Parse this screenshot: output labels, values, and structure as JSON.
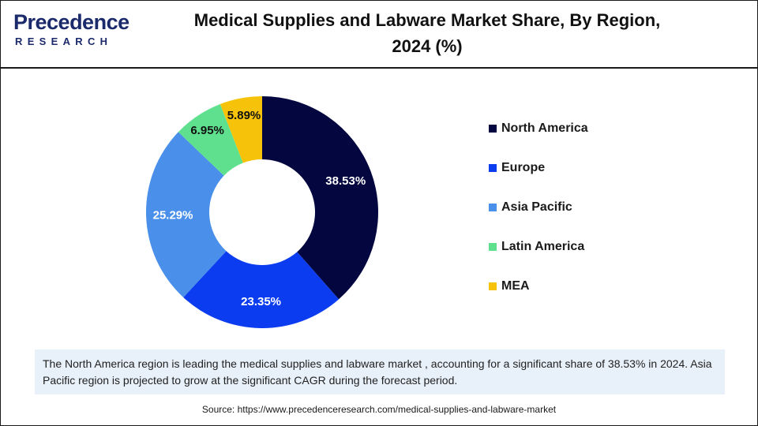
{
  "header": {
    "logo_word": "Precedence",
    "logo_sub": "RESEARCH",
    "title_line1": "Medical Supplies and Labware Market Share, By Region,",
    "title_line2": "2024 (%)"
  },
  "chart_data": {
    "type": "pie",
    "title": "Medical Supplies and Labware Market Share, By Region, 2024 (%)",
    "donut": true,
    "categories": [
      "North America",
      "Europe",
      "Asia Pacific",
      "Latin America",
      "MEA"
    ],
    "values": [
      38.53,
      23.35,
      25.29,
      6.95,
      5.89
    ],
    "labels": [
      "38.53%",
      "23.35%",
      "25.29%",
      "6.95%",
      "5.89%"
    ],
    "colors": [
      "#03063f",
      "#0b3cf0",
      "#4a90ea",
      "#5ee08e",
      "#f7c30a"
    ],
    "label_colors": [
      "#ffffff",
      "#ffffff",
      "#ffffff",
      "#111111",
      "#111111"
    ],
    "legend_position": "right"
  },
  "note": {
    "text": "The North America region is leading the medical supplies and labware market , accounting for a significant share of 38.53% in 2024. Asia Pacific region is projected to grow at the significant CAGR during the forecast period."
  },
  "source": {
    "text": "Source: https://www.precedenceresearch.com/medical-supplies-and-labware-market"
  }
}
